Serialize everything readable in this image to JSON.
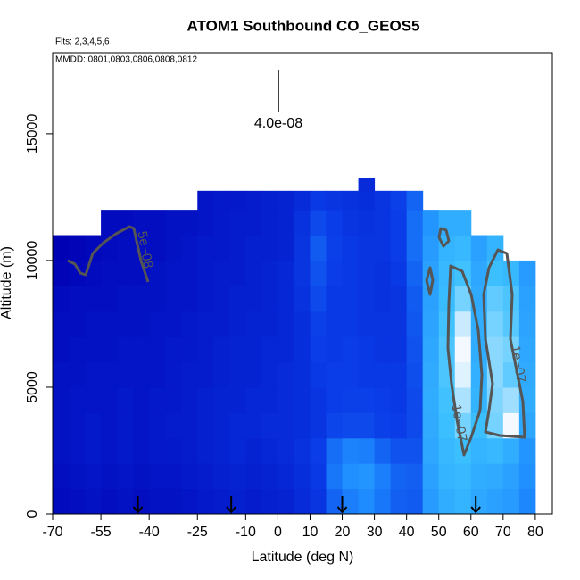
{
  "chart_data": {
    "type": "heatmap",
    "title": "ATOM1 Southbound CO_GEOS5",
    "subtitle": "Flts: 2,3,4,5,6",
    "annotation": "MMDD: 0801,0803,0806,0808,0812",
    "xlabel": "Latitude (deg N)",
    "ylabel": "Altitude (m)",
    "xlim": [
      -70,
      85.3
    ],
    "ylim": [
      0,
      18200
    ],
    "xticks": [
      -70,
      -55,
      -40,
      -25,
      -10,
      0,
      10,
      20,
      30,
      40,
      50,
      60,
      70,
      80
    ],
    "yticks": [
      0,
      5000,
      10000,
      15000
    ],
    "scale_bar": {
      "value": 4e-08,
      "label": "4.0e-08"
    },
    "flight_markers_x": [
      -43.5,
      -14.5,
      20,
      61.5
    ],
    "contour_labels": [
      "5e−08",
      "1e−07",
      "1e−07"
    ],
    "color_scale": {
      "range": [
        5e-08,
        1.2e-07
      ],
      "colors": [
        "#0000b4",
        "#0a3ee8",
        "#1e8cff",
        "#3cc0ff",
        "#f4f8ff"
      ]
    },
    "x": [
      -67.5,
      -62.5,
      -57.5,
      -52.5,
      -47.5,
      -42.5,
      -37.5,
      -32.5,
      -27.5,
      -22.5,
      -17.5,
      -12.5,
      -7.5,
      -2.5,
      2.5,
      7.5,
      12.5,
      17.5,
      22.5,
      27.5,
      32.5,
      37.5,
      42.5,
      47.5,
      52.5,
      57.5,
      62.5,
      67.5,
      72.5,
      77.5
    ],
    "y": [
      500,
      1500,
      2500,
      3500,
      4500,
      5500,
      6500,
      7500,
      8500,
      9500,
      10500,
      11500,
      12500,
      13000
    ],
    "z": [
      [
        5.3e-08,
        5.4e-08,
        5.5e-08,
        5.4e-08,
        5.5e-08,
        5.4e-08,
        5.5e-08,
        5.5e-08,
        5.6e-08,
        5.7e-08,
        5.8e-08,
        5.9e-08,
        5.8e-08,
        5.9e-08,
        6e-08,
        6.2e-08,
        6.5e-08,
        7.6e-08,
        8.2e-08,
        8.5e-08,
        8e-08,
        7.5e-08,
        7.4e-08,
        9e-08,
        9.6e-08,
        9.8e-08,
        9.4e-08,
        9.2e-08,
        9e-08,
        8.4e-08
      ],
      [
        5.4e-08,
        5.5e-08,
        5.6e-08,
        5.5e-08,
        5.6e-08,
        5.5e-08,
        5.6e-08,
        5.6e-08,
        5.7e-08,
        5.8e-08,
        5.9e-08,
        6e-08,
        5.9e-08,
        6e-08,
        6.1e-08,
        6.3e-08,
        6.6e-08,
        8e-08,
        8.6e-08,
        8.8e-08,
        8.2e-08,
        7.6e-08,
        7.5e-08,
        9.2e-08,
        9.8e-08,
        1e-07,
        9.6e-08,
        9.5e-08,
        9.2e-08,
        8.6e-08
      ],
      [
        5.5e-08,
        5.6e-08,
        5.7e-08,
        5.6e-08,
        5.7e-08,
        5.6e-08,
        5.7e-08,
        5.7e-08,
        5.8e-08,
        5.9e-08,
        6e-08,
        6.1e-08,
        6e-08,
        6.1e-08,
        6.2e-08,
        6.4e-08,
        6.7e-08,
        7.8e-08,
        8.3e-08,
        8.2e-08,
        7.6e-08,
        7.2e-08,
        7.2e-08,
        9.4e-08,
        1e-07,
        1.02e-07,
        9.8e-08,
        1e-07,
        9.6e-08,
        8.8e-08
      ],
      [
        5.5e-08,
        5.6e-08,
        5.7e-08,
        5.6e-08,
        5.7e-08,
        5.6e-08,
        5.7e-08,
        5.8e-08,
        5.8e-08,
        5.9e-08,
        6e-08,
        6.1e-08,
        6.1e-08,
        6.2e-08,
        6.2e-08,
        6.3e-08,
        6.5e-08,
        6.9e-08,
        7e-08,
        7e-08,
        6.8e-08,
        6.7e-08,
        7e-08,
        9.5e-08,
        1.02e-07,
        1.08e-07,
        1.02e-07,
        1.08e-07,
        1.2e-07,
        9.4e-08
      ],
      [
        5.5e-08,
        5.6e-08,
        5.6e-08,
        5.6e-08,
        5.7e-08,
        5.6e-08,
        5.7e-08,
        5.7e-08,
        5.8e-08,
        5.9e-08,
        6e-08,
        6e-08,
        6.1e-08,
        6.1e-08,
        6.2e-08,
        6.3e-08,
        6.5e-08,
        6.7e-08,
        6.8e-08,
        6.8e-08,
        6.7e-08,
        6.6e-08,
        7e-08,
        9.6e-08,
        1.03e-07,
        1.13e-07,
        9.8e-08,
        1.09e-07,
        1.12e-07,
        9.6e-08
      ],
      [
        5.5e-08,
        5.5e-08,
        5.6e-08,
        5.6e-08,
        5.6e-08,
        5.6e-08,
        5.6e-08,
        5.7e-08,
        5.8e-08,
        5.8e-08,
        5.9e-08,
        6e-08,
        6e-08,
        6.1e-08,
        6.2e-08,
        6.3e-08,
        6.6e-08,
        6.7e-08,
        6.7e-08,
        6.6e-08,
        6.6e-08,
        6.6e-08,
        7.1e-08,
        9.5e-08,
        1.04e-07,
        1.18e-07,
        9.7e-08,
        1.1e-07,
        1.06e-07,
        9.5e-08
      ],
      [
        5.4e-08,
        5.5e-08,
        5.5e-08,
        5.5e-08,
        5.6e-08,
        5.6e-08,
        5.6e-08,
        5.7e-08,
        5.7e-08,
        5.8e-08,
        5.9e-08,
        6e-08,
        6e-08,
        6.1e-08,
        6.1e-08,
        6.3e-08,
        6.7e-08,
        6.6e-08,
        6.7e-08,
        6.6e-08,
        6.5e-08,
        6.5e-08,
        7.2e-08,
        9.4e-08,
        1.04e-07,
        1.2e-07,
        9.6e-08,
        1.1e-07,
        1.08e-07,
        9.4e-08
      ],
      [
        5.4e-08,
        5.4e-08,
        5.5e-08,
        5.5e-08,
        5.5e-08,
        5.5e-08,
        5.6e-08,
        5.6e-08,
        5.7e-08,
        5.8e-08,
        5.8e-08,
        5.9e-08,
        6e-08,
        6e-08,
        6.1e-08,
        6.3e-08,
        6.8e-08,
        6.6e-08,
        6.6e-08,
        6.5e-08,
        6.5e-08,
        6.5e-08,
        7.3e-08,
        9.3e-08,
        1.03e-07,
        1.16e-07,
        9.6e-08,
        1.08e-07,
        1.05e-07,
        9.3e-08
      ],
      [
        5.3e-08,
        5.4e-08,
        5.4e-08,
        5.4e-08,
        5.5e-08,
        5.5e-08,
        5.5e-08,
        5.6e-08,
        5.6e-08,
        5.7e-08,
        5.8e-08,
        5.9e-08,
        5.9e-08,
        6e-08,
        6.1e-08,
        6.4e-08,
        7e-08,
        6.6e-08,
        6.6e-08,
        6.5e-08,
        6.4e-08,
        6.5e-08,
        7.4e-08,
        9.2e-08,
        1.01e-07,
        1.08e-07,
        9.5e-08,
        1.06e-07,
        1.04e-07,
        9.2e-08
      ],
      [
        5.1e-08,
        5.2e-08,
        5.3e-08,
        5.4e-08,
        5.4e-08,
        5.4e-08,
        5.5e-08,
        5.6e-08,
        5.6e-08,
        5.7e-08,
        5.8e-08,
        5.8e-08,
        5.9e-08,
        6e-08,
        6.1e-08,
        6.5e-08,
        7.2e-08,
        6.7e-08,
        6.6e-08,
        6.5e-08,
        6.4e-08,
        6.6e-08,
        7.6e-08,
        9.2e-08,
        1e-07,
        1.03e-07,
        9.4e-08,
        1.02e-07,
        1e-07,
        9e-08
      ],
      [
        5e-08,
        5.1e-08,
        5.2e-08,
        5.3e-08,
        5.4e-08,
        5.4e-08,
        5.4e-08,
        5.5e-08,
        5.6e-08,
        5.7e-08,
        5.7e-08,
        5.8e-08,
        5.9e-08,
        5.9e-08,
        6e-08,
        6.5e-08,
        7.4e-08,
        6.8e-08,
        6.6e-08,
        6.5e-08,
        6.5e-08,
        6.7e-08,
        7.8e-08,
        9e-08,
        9.8e-08,
        1e-07,
        9.2e-08,
        9.8e-08,
        null,
        null
      ],
      [
        null,
        null,
        null,
        5.3e-08,
        5.3e-08,
        5.4e-08,
        5.4e-08,
        5.5e-08,
        5.5e-08,
        5.6e-08,
        5.7e-08,
        5.8e-08,
        5.8e-08,
        5.9e-08,
        6e-08,
        6.4e-08,
        7e-08,
        6.7e-08,
        6.5e-08,
        6.4e-08,
        6.5e-08,
        6.7e-08,
        7.8e-08,
        8.8e-08,
        9.6e-08,
        9.6e-08,
        null,
        null,
        null,
        null
      ],
      [
        null,
        null,
        null,
        null,
        null,
        null,
        null,
        null,
        null,
        5.6e-08,
        5.7e-08,
        5.7e-08,
        5.8e-08,
        5.9e-08,
        6e-08,
        6.2e-08,
        6.6e-08,
        6.5e-08,
        6.4e-08,
        6.3e-08,
        6.5e-08,
        6.8e-08,
        7.6e-08,
        null,
        null,
        null,
        null,
        null,
        null,
        null
      ],
      [
        null,
        null,
        null,
        null,
        null,
        null,
        null,
        null,
        null,
        null,
        null,
        null,
        null,
        null,
        null,
        null,
        null,
        null,
        null,
        6.2e-08,
        null,
        null,
        null,
        null,
        null,
        null,
        null,
        null,
        null,
        null
      ]
    ]
  }
}
